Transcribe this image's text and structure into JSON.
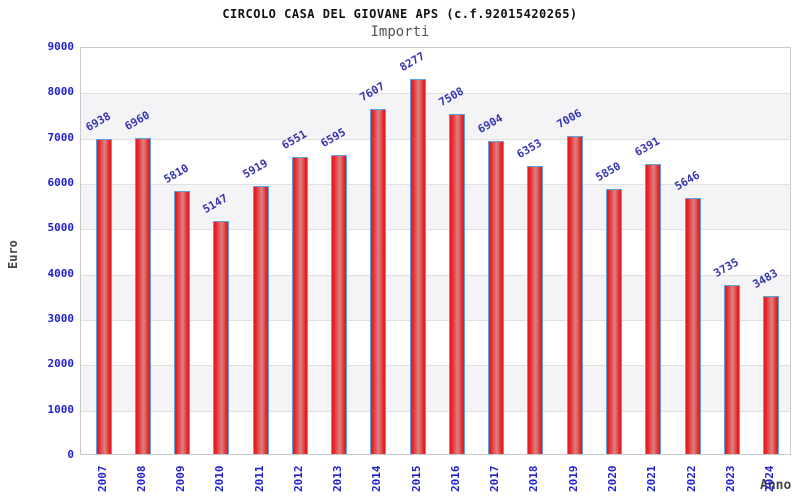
{
  "header": {
    "title": "CIRCOLO CASA DEL GIOVANE APS (c.f.92015420265)",
    "subtitle": "Importi"
  },
  "axes": {
    "y_title": "Euro",
    "x_title": "Anno"
  },
  "chart_data": {
    "type": "bar",
    "title": "CIRCOLO CASA DEL GIOVANE APS (c.f.92015420265)",
    "subtitle": "Importi",
    "xlabel": "Anno",
    "ylabel": "Euro",
    "categories": [
      "2007",
      "2008",
      "2009",
      "2010",
      "2011",
      "2012",
      "2013",
      "2014",
      "2015",
      "2016",
      "2017",
      "2018",
      "2019",
      "2020",
      "2021",
      "2022",
      "2023",
      "2024"
    ],
    "values": [
      6938,
      6960,
      5810,
      5147,
      5919,
      6551,
      6595,
      7607,
      8277,
      7508,
      6904,
      6353,
      7006,
      5850,
      6391,
      5646,
      3735,
      3483
    ],
    "ylim": [
      0,
      9000
    ],
    "ytick_step": 1000,
    "yticks": [
      0,
      1000,
      2000,
      3000,
      4000,
      5000,
      6000,
      7000,
      8000,
      9000
    ],
    "grid": "horizontal-gridlines-with-alternating-bands",
    "legend": false,
    "bar_label_rotation_deg": -30,
    "x_tick_rotation_deg": -90
  },
  "colors": {
    "bar_red": "#e51d23",
    "bar_center_highlight": "#d8857f",
    "bar_border_blue": "#5ba3e0",
    "tick_label_blue": "#2222cc",
    "value_label_blue": "#3636b0",
    "band_gray": "#f4f4f6",
    "gridline_gray": "#e0e0e4",
    "plot_border_gray": "#c9c9cf",
    "title_black": "#111111",
    "subtitle_gray": "#555555",
    "axis_title_gray": "#444444",
    "background": "#ffffff"
  }
}
